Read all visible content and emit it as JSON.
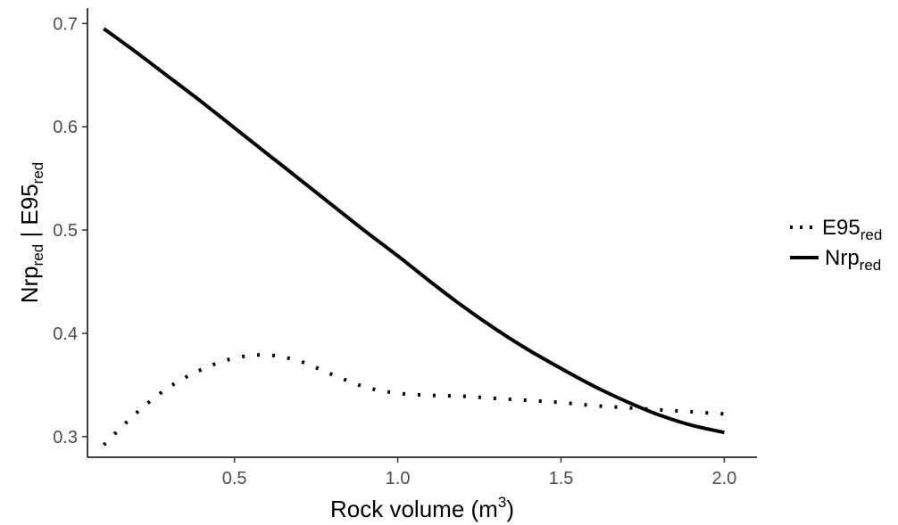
{
  "chart_data": {
    "type": "line",
    "xlabel": {
      "text": "Rock volume (m",
      "sup": "3",
      "end": ")"
    },
    "ylabel": [
      {
        "text": "Nrp",
        "sub": "red"
      },
      {
        "text": " | "
      },
      {
        "text": "E95",
        "sub": "red"
      }
    ],
    "xlim": [
      0.05,
      2.1
    ],
    "ylim": [
      0.28,
      0.715
    ],
    "xticks": [
      0.5,
      1.0,
      1.5,
      2.0
    ],
    "xtick_labels": [
      "0.5",
      "1.0",
      "1.5",
      "2.0"
    ],
    "yticks": [
      0.3,
      0.4,
      0.5,
      0.6,
      0.7
    ],
    "ytick_labels": [
      "0.3",
      "0.4",
      "0.5",
      "0.6",
      "0.7"
    ],
    "grid": false,
    "legend_position": "right",
    "series": [
      {
        "name": "E95",
        "name_sub": "red",
        "style": "dotted",
        "color": "#000000",
        "x": [
          0.1,
          0.2,
          0.3,
          0.4,
          0.5,
          0.6,
          0.7,
          0.8,
          0.9,
          1.0,
          1.1,
          1.2,
          1.3,
          1.4,
          1.5,
          1.6,
          1.7,
          1.8,
          1.9,
          2.0
        ],
        "y": [
          0.292,
          0.323,
          0.348,
          0.365,
          0.376,
          0.379,
          0.373,
          0.36,
          0.348,
          0.342,
          0.34,
          0.339,
          0.337,
          0.335,
          0.333,
          0.33,
          0.328,
          0.326,
          0.324,
          0.322
        ]
      },
      {
        "name": "Nrp",
        "name_sub": "red",
        "style": "solid",
        "color": "#000000",
        "x": [
          0.1,
          0.2,
          0.3,
          0.4,
          0.5,
          0.6,
          0.7,
          0.8,
          0.9,
          1.0,
          1.1,
          1.2,
          1.3,
          1.4,
          1.5,
          1.6,
          1.7,
          1.8,
          1.9,
          2.0
        ],
        "y": [
          0.695,
          0.672,
          0.648,
          0.624,
          0.599,
          0.574,
          0.549,
          0.524,
          0.499,
          0.475,
          0.45,
          0.426,
          0.404,
          0.384,
          0.366,
          0.349,
          0.334,
          0.321,
          0.311,
          0.304
        ]
      }
    ]
  }
}
